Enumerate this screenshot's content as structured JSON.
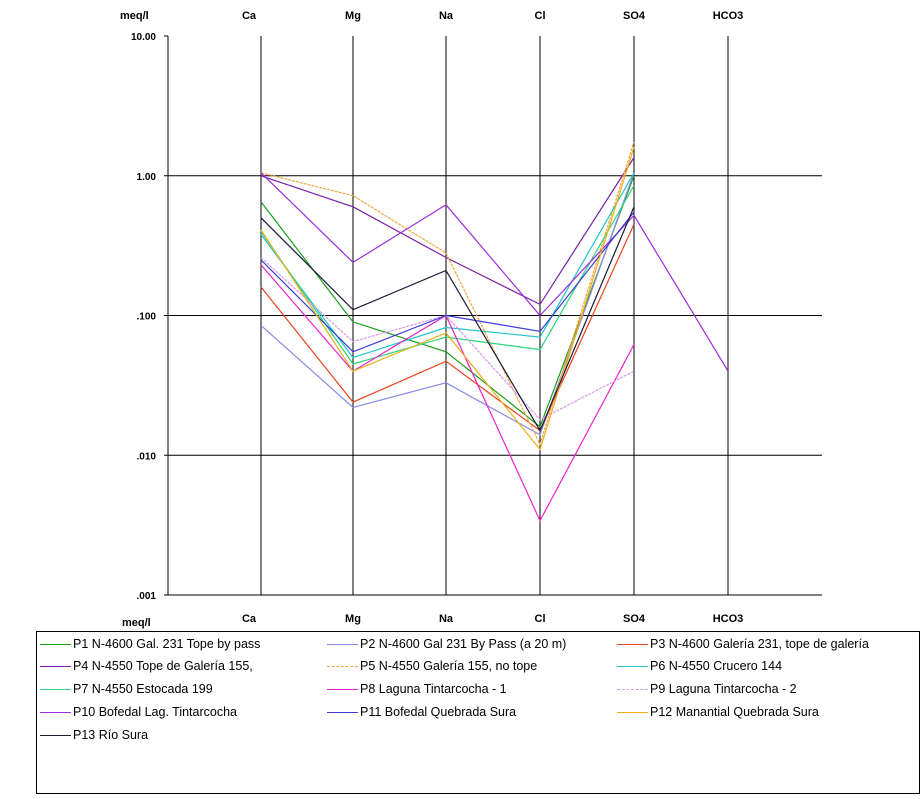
{
  "chart_data": {
    "type": "line",
    "title": "",
    "unit_label_top": "meq/l",
    "unit_label_bottom": "meq/l",
    "categories": [
      "Ca",
      "Mg",
      "Na",
      "Cl",
      "SO4",
      "HCO3"
    ],
    "y_scale": "log",
    "ylim": [
      0.001,
      10
    ],
    "yticks": [
      {
        "value": 10,
        "label": "10.00"
      },
      {
        "value": 1,
        "label": "1.00"
      },
      {
        "value": 0.1,
        "label": ".100"
      },
      {
        "value": 0.01,
        "label": ".010"
      },
      {
        "value": 0.001,
        "label": ".001"
      }
    ],
    "grid": true,
    "legend_position": "bottom",
    "series": [
      {
        "name": "P1 N-4600 Gal. 231 Tope by pass",
        "color": "#1a9e1a",
        "dashed": false,
        "values": [
          0.65,
          0.09,
          0.055,
          0.016,
          1.0,
          null
        ]
      },
      {
        "name": "P2 N-4600  Gal 231 By Pass (a 20 m)",
        "color": "#8a8ae6",
        "dashed": false,
        "values": [
          0.085,
          0.022,
          0.033,
          0.014,
          1.05,
          null
        ]
      },
      {
        "name": "P3 N-4600 Galería 231, tope de galería",
        "color": "#e8431b",
        "dashed": false,
        "values": [
          0.16,
          0.024,
          0.047,
          0.015,
          0.45,
          null
        ]
      },
      {
        "name": "P4 N-4550 Tope de Galería 155,",
        "color": "#7a1fa8",
        "dashed": false,
        "values": [
          1.0,
          0.6,
          0.26,
          0.12,
          1.35,
          null
        ]
      },
      {
        "name": "P5 N-4550 Galería 155, no tope",
        "color": "#f0a640",
        "dashed": true,
        "values": [
          1.05,
          0.72,
          0.28,
          0.012,
          1.75,
          null
        ]
      },
      {
        "name": "P6 N-4550 Crucero 144",
        "color": "#22c4cc",
        "dashed": false,
        "values": [
          0.38,
          0.05,
          0.082,
          0.07,
          1.05,
          null
        ]
      },
      {
        "name": "P7 N-4550 Estocada 199",
        "color": "#2ed67a",
        "dashed": false,
        "values": [
          0.4,
          0.045,
          0.07,
          0.057,
          0.85,
          null
        ]
      },
      {
        "name": "P8 Laguna  Tintarcocha - 1",
        "color": "#ee22cc",
        "dashed": false,
        "values": [
          0.23,
          0.04,
          0.1,
          0.0034,
          0.062,
          null
        ]
      },
      {
        "name": "P9 Laguna  Tintarcocha - 2",
        "color": "#d49be8",
        "dashed": true,
        "values": [
          0.26,
          0.065,
          0.1,
          0.018,
          0.04,
          null
        ]
      },
      {
        "name": "P10 Bofedal Lag. Tintarcocha",
        "color": "#9c2de0",
        "dashed": false,
        "values": [
          1.05,
          0.24,
          0.62,
          0.1,
          0.52,
          0.04
        ]
      },
      {
        "name": "P11 Bofedal Quebrada Sura",
        "color": "#3d3dd6",
        "dashed": false,
        "values": [
          0.25,
          0.055,
          0.1,
          0.077,
          0.55,
          null
        ]
      },
      {
        "name": "P12 Manantial Quebrada Sura",
        "color": "#ebb01a",
        "dashed": false,
        "values": [
          0.41,
          0.04,
          0.075,
          0.011,
          1.6,
          null
        ]
      },
      {
        "name": "P13 Río Sura",
        "color": "#1a1a3a",
        "dashed": false,
        "values": [
          0.5,
          0.11,
          0.21,
          0.015,
          0.6,
          null
        ]
      }
    ]
  }
}
